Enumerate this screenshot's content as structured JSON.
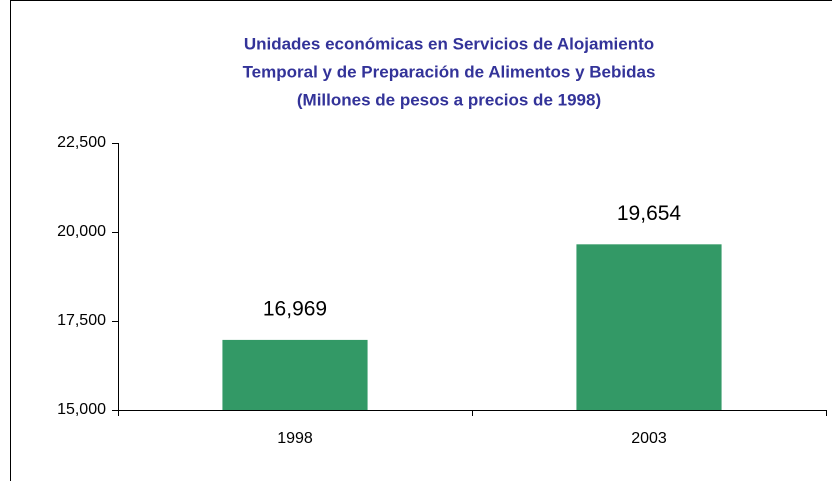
{
  "chart_data": {
    "type": "bar",
    "title": [
      "Unidades económicas en Servicios de Alojamiento",
      "Temporal y de Preparación de Alimentos y Bebidas",
      "(Millones de pesos a precios de 1998)"
    ],
    "categories": [
      "1998",
      "2003"
    ],
    "values": [
      16969,
      19654
    ],
    "value_labels": [
      "16,969",
      "19,654"
    ],
    "color": "#339966",
    "ylim": [
      15000,
      22500
    ],
    "yticks": [
      {
        "value": 15000,
        "label": "15,000"
      },
      {
        "value": 17500,
        "label": "17,500"
      },
      {
        "value": 20000,
        "label": "20,000"
      },
      {
        "value": 22500,
        "label": "22,500"
      }
    ],
    "grid": false
  }
}
